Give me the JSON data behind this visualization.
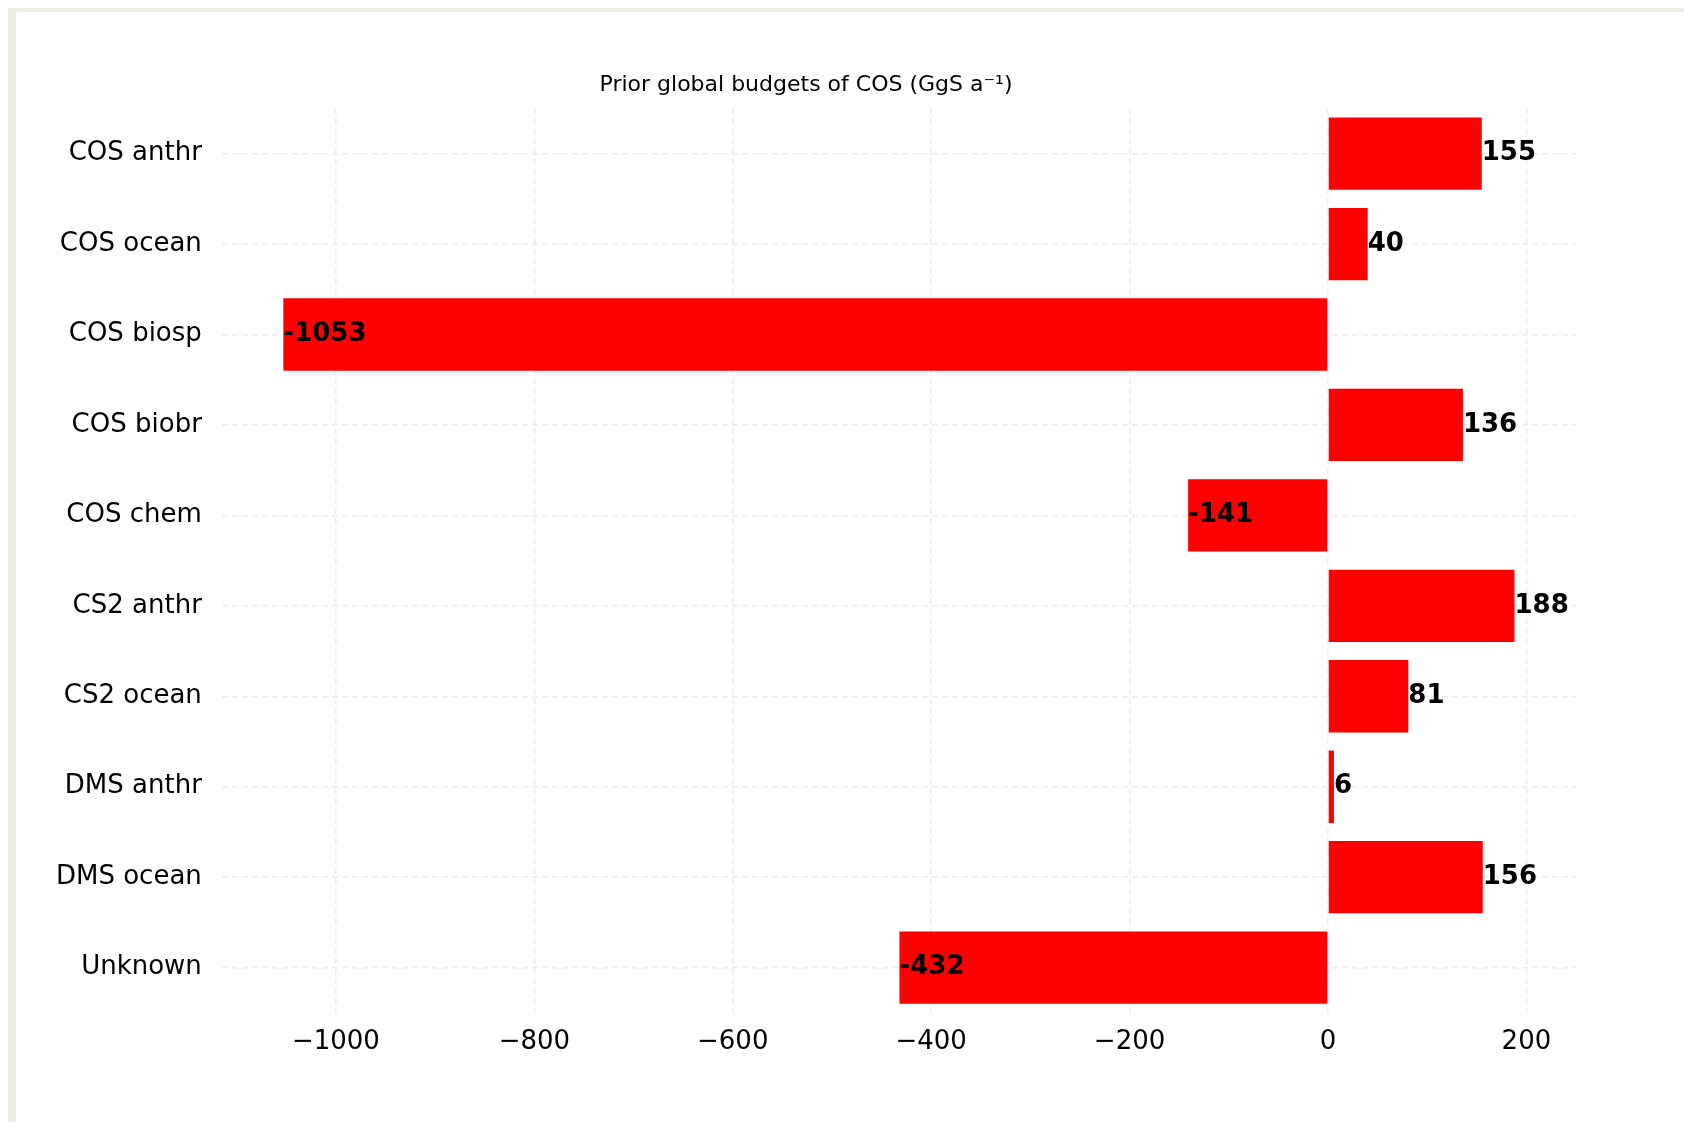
{
  "chart_data": {
    "type": "bar",
    "orientation": "horizontal",
    "title": "Prior global budgets of COS (GgS a⁻¹)",
    "categories": [
      "COS anthr",
      "COS ocean",
      "COS biosp",
      "COS biobr",
      "COS chem",
      "CS2 anthr",
      "CS2 ocean",
      "DMS anthr",
      "DMS ocean",
      "Unknown"
    ],
    "values": [
      155,
      40,
      -1053,
      136,
      -141,
      188,
      81,
      6,
      156,
      -432
    ],
    "color": "#ff0000",
    "xlim": [
      -1115,
      250
    ],
    "xticks": [
      {
        "value": -1000,
        "label": "−1000"
      },
      {
        "value": -800,
        "label": "−800"
      },
      {
        "value": -600,
        "label": "−600"
      },
      {
        "value": -400,
        "label": "−400"
      },
      {
        "value": -200,
        "label": "−200"
      },
      0,
      200
    ],
    "grid": true,
    "data_labels": true,
    "legend": false
  }
}
